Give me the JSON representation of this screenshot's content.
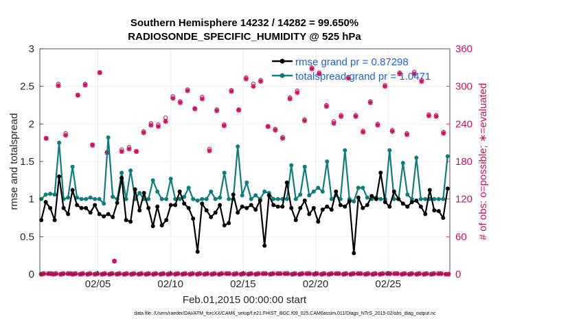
{
  "chart_data": {
    "type": "line",
    "title_line1": "Southern Hemisphere 14232 / 14282 = 99.650%",
    "title_line2": "RADIOSONDE_SPECIFIC_HUMIDITY @ 525 hPa",
    "xlabel": "Feb.01,2015 00:00:00 start",
    "ylabel_left": "rmse and totalspread",
    "ylabel_right": "# of obs: o=possible; ∗=evaluated",
    "footer": "data file: /Users/raeder/DAI/ATM_forcXX/CAM6_setup/f.e21.FHIST_BGC.f09_025.CAM6assim.011/Diags_NTrS_2015-02/obs_diag_output.nc",
    "xlim": [
      1,
      29.25
    ],
    "ylim_left": [
      0,
      3
    ],
    "ylim_right": [
      0,
      360
    ],
    "x_ticks": [
      5,
      10,
      15,
      20,
      25
    ],
    "x_tick_labels": [
      "02/05",
      "02/10",
      "02/15",
      "02/20",
      "02/25"
    ],
    "y_left_ticks": [
      "0",
      "0.5",
      "1",
      "1.5",
      "2",
      "2.5",
      "3"
    ],
    "y_right_ticks": [
      "0",
      "60",
      "120",
      "180",
      "240",
      "300",
      "360"
    ],
    "colors": {
      "rmse": "#000000",
      "spread": "#0b7d7d",
      "obs": "#d0105f",
      "legend_text": "#1f5fe0"
    },
    "series": [
      {
        "name": "rmse",
        "legend": "rmse grand pr = 0.87298",
        "color": "#000000",
        "values": [
          0.72,
          0.96,
          0.88,
          0.72,
          1.3,
          0.88,
          0.8,
          1.12,
          0.92,
          0.88,
          0.88,
          0.82,
          0.92,
          0.8,
          0.77,
          0.8,
          0.76,
          0.95,
          1.28,
          0.72,
          0.7,
          1.13,
          0.85,
          1.08,
          0.88,
          0.64,
          0.9,
          0.65,
          0.72,
          0.92,
          0.92,
          1.1,
          0.94,
          0.88,
          0.74,
          0.3,
          0.94,
          0.85,
          0.76,
          0.82,
          0.92,
          0.65,
          0.68,
          1.06,
          0.82,
          0.9,
          0.88,
          0.92,
          0.86,
          0.98,
          0.38,
          1.05,
          0.92,
          0.9,
          0.9,
          1.22,
          0.88,
          0.72,
          0.88,
          0.98,
          0.8,
          0.88,
          0.7,
          0.86,
          0.9,
          0.86,
          1.1,
          0.92,
          0.9,
          0.97,
          0.28,
          1.02,
          0.88,
          0.92,
          1.04,
          1.0,
          1.35,
          0.96,
          0.9,
          1.1,
          1.0,
          0.94,
          0.9,
          0.96,
          0.98,
          0.9,
          0.8,
          1.12,
          0.85,
          0.84,
          0.75,
          1.14
        ]
      },
      {
        "name": "totalspread",
        "legend": "totalspread grand pr = 1.0471",
        "color": "#0b7d7d",
        "values": [
          1.0,
          1.06,
          1.07,
          1.06,
          1.75,
          1.0,
          1.02,
          1.43,
          1.02,
          1.0,
          1.0,
          1.02,
          1.0,
          1.0,
          0.94,
          1.82,
          1.03,
          1.0,
          1.35,
          1.0,
          1.38,
          1.0,
          1.08,
          1.0,
          1.0,
          1.25,
          1.1,
          1.0,
          1.0,
          1.27,
          1.0,
          1.0,
          1.03,
          1.15,
          1.0,
          0.98,
          1.0,
          1.0,
          1.1,
          1.0,
          1.02,
          1.35,
          1.0,
          1.0,
          1.7,
          1.05,
          1.22,
          1.0,
          1.05,
          1.0,
          1.1,
          1.08,
          1.0,
          1.0,
          1.0,
          1.0,
          1.45,
          1.0,
          1.06,
          1.43,
          1.05,
          1.1,
          1.15,
          1.1,
          1.5,
          1.0,
          1.05,
          1.0,
          1.65,
          1.0,
          0.97,
          1.15,
          1.15,
          1.02,
          1.0,
          1.02,
          1.0,
          1.0,
          1.65,
          1.0,
          1.0,
          1.48,
          1.06,
          1.0,
          1.55,
          1.0,
          1.0,
          1.0,
          1.0,
          1.0,
          1.0,
          1.57
        ]
      },
      {
        "name": "obs_possible",
        "marker": "o",
        "color": "#d0105f",
        "values": [
          0,
          1,
          217,
          1,
          1,
          0,
          1,
          304,
          0,
          1,
          225,
          1,
          1,
          0,
          1,
          286,
          0,
          1,
          304,
          0,
          1,
          207,
          0,
          1,
          322,
          0,
          1,
          195,
          0,
          1,
          21,
          0,
          1,
          199,
          0,
          1,
          203,
          0,
          1,
          196,
          0,
          1,
          228,
          0,
          1,
          241,
          0,
          1,
          239,
          0,
          1,
          250,
          0,
          1,
          284,
          0,
          1,
          276,
          0,
          1,
          295,
          0,
          1,
          265,
          0,
          1,
          283,
          0,
          1,
          200,
          0,
          1,
          263,
          0,
          1,
          239,
          1,
          1,
          294,
          0,
          1,
          263,
          0,
          1,
          314,
          0,
          1,
          304,
          0,
          1,
          310,
          1,
          1,
          236,
          0,
          1,
          232,
          1,
          1,
          219,
          1,
          1,
          282,
          0,
          1,
          293,
          0,
          1,
          247,
          1,
          1,
          330,
          0,
          1,
          322,
          0,
          1,
          270,
          0,
          1,
          244,
          1,
          1,
          254,
          0,
          1,
          315,
          0,
          1,
          254,
          1,
          1,
          229,
          0,
          1,
          276,
          0,
          1,
          240,
          0,
          1,
          302,
          1,
          1,
          230,
          1,
          1,
          322,
          0,
          1,
          225,
          0,
          1,
          323,
          0,
          1,
          310,
          0,
          1,
          255,
          0,
          1,
          254,
          1,
          1,
          227,
          0,
          0
        ]
      },
      {
        "name": "obs_evaluated",
        "marker": "*",
        "color": "#d0105f",
        "values": [
          0,
          1,
          217,
          1,
          1,
          0,
          1,
          301,
          0,
          1,
          222,
          1,
          1,
          0,
          1,
          286,
          0,
          1,
          302,
          0,
          1,
          206,
          0,
          1,
          322,
          0,
          1,
          194,
          0,
          1,
          21,
          0,
          1,
          196,
          0,
          1,
          200,
          0,
          1,
          196,
          0,
          1,
          226,
          0,
          1,
          238,
          0,
          1,
          236,
          0,
          1,
          244,
          0,
          1,
          281,
          0,
          1,
          274,
          0,
          1,
          293,
          0,
          1,
          264,
          0,
          1,
          280,
          0,
          1,
          197,
          0,
          1,
          261,
          0,
          1,
          237,
          1,
          1,
          292,
          0,
          1,
          262,
          0,
          1,
          312,
          0,
          1,
          300,
          0,
          1,
          308,
          1,
          1,
          236,
          0,
          1,
          230,
          1,
          1,
          217,
          1,
          1,
          280,
          0,
          1,
          290,
          0,
          1,
          245,
          1,
          1,
          328,
          0,
          1,
          320,
          0,
          1,
          268,
          0,
          1,
          241,
          1,
          1,
          252,
          0,
          1,
          313,
          0,
          1,
          252,
          1,
          1,
          227,
          0,
          1,
          274,
          0,
          1,
          238,
          0,
          1,
          300,
          1,
          1,
          228,
          1,
          1,
          320,
          0,
          1,
          223,
          0,
          1,
          320,
          0,
          1,
          308,
          0,
          1,
          253,
          0,
          1,
          252,
          1,
          1,
          225,
          0,
          0
        ]
      }
    ]
  }
}
